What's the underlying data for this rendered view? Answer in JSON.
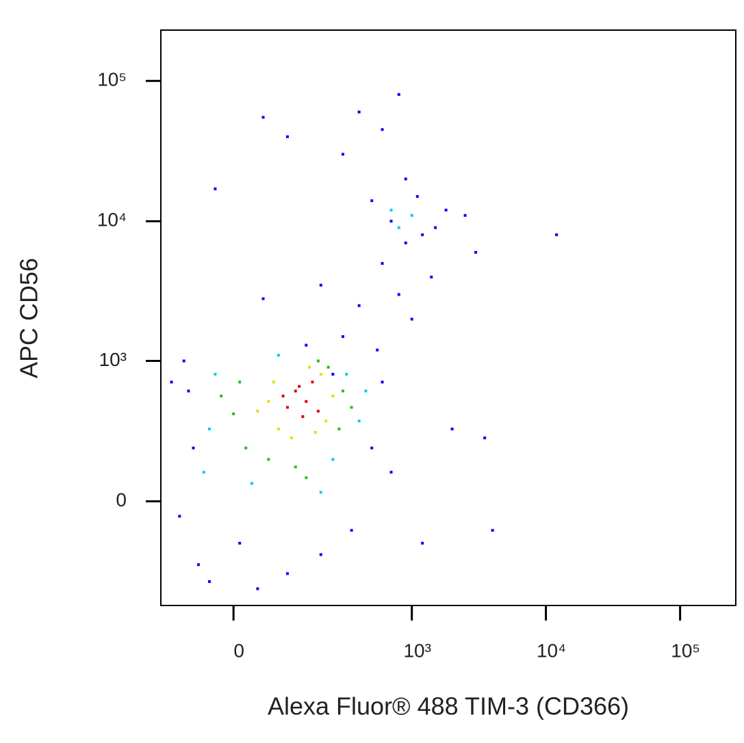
{
  "chart_data": {
    "type": "scatter",
    "x_label": "Alexa Fluor® 488 TIM-3 (CD366)",
    "y_label": "APC CD56",
    "xscale": "biex",
    "yscale": "biex",
    "xlim": [
      -150,
      260000
    ],
    "ylim": [
      -540,
      230000
    ],
    "xticks": [
      0,
      {
        "value": 1000,
        "label": "10³"
      },
      {
        "value": 10000,
        "label": "10⁴"
      },
      {
        "value": 100000,
        "label": "10⁵"
      }
    ],
    "yticks": [
      0,
      {
        "value": 1000,
        "label": "10³"
      },
      {
        "value": 10000,
        "label": "10⁴"
      },
      {
        "value": 100000,
        "label": "10⁵"
      }
    ],
    "series": [
      {
        "color": "#0000ff",
        "x": [
          -70,
          -80,
          -100,
          500,
          600,
          10,
          200,
          350,
          -60,
          100,
          550,
          300,
          400,
          200,
          600,
          900,
          1200,
          700,
          1100,
          500,
          1500,
          900,
          300,
          600,
          1800,
          2500,
          3000,
          1400,
          800,
          1000,
          2000,
          3500,
          4000,
          1200,
          12000,
          -120,
          -90,
          40,
          -40,
          250,
          700,
          150,
          50,
          -30,
          100,
          800,
          50,
          400
        ],
        "values": [
          200,
          600,
          -50,
          200,
          700,
          -150,
          -200,
          -100,
          -250,
          -300,
          1200,
          1500,
          2500,
          3500,
          5000,
          7000,
          8000,
          10000,
          15000,
          14000,
          9000,
          20000,
          30000,
          45000,
          12000,
          11000,
          6000,
          4000,
          3000,
          2000,
          300,
          250,
          -100,
          -150,
          8000,
          700,
          1000,
          -400,
          -350,
          800,
          100,
          1300,
          2800,
          17000,
          40000,
          80000,
          55000,
          60000
        ]
      },
      {
        "color": "#00d0e0",
        "x": [
          -40,
          400,
          30,
          320,
          -30,
          250,
          80,
          450,
          800,
          1000,
          700,
          -50,
          200
        ],
        "values": [
          300,
          350,
          60,
          800,
          800,
          150,
          1100,
          600,
          9000,
          11000,
          12000,
          100,
          30
        ]
      },
      {
        "color": "#20c020",
        "x": [
          20,
          300,
          10,
          280,
          60,
          230,
          350,
          0,
          120,
          190,
          -20,
          150
        ],
        "values": [
          200,
          600,
          700,
          300,
          150,
          900,
          450,
          400,
          120,
          1000,
          550,
          80
        ]
      },
      {
        "color": "#e0e000",
        "x": [
          80,
          200,
          60,
          220,
          110,
          160,
          250,
          70,
          180,
          40
        ],
        "values": [
          300,
          800,
          500,
          350,
          250,
          900,
          550,
          700,
          280,
          420
        ]
      },
      {
        "color": "#e00000",
        "x": [
          120,
          150,
          100,
          170,
          140,
          90,
          190,
          130
        ],
        "values": [
          600,
          500,
          450,
          700,
          380,
          550,
          420,
          650
        ]
      }
    ]
  }
}
